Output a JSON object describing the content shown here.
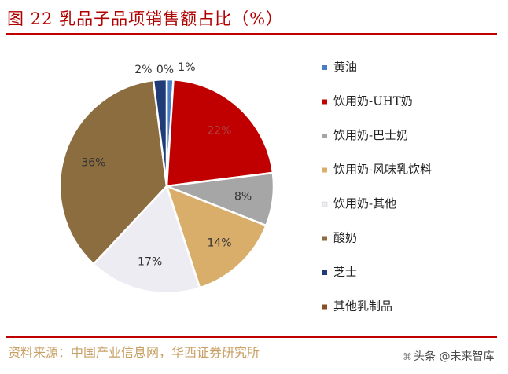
{
  "figure": {
    "title": "图 22   乳品子品项销售额占比（%）",
    "source": "资料来源：中国产业信息网，华西证券研究所",
    "watermark": "头条 @未来智库"
  },
  "chart_data": {
    "type": "pie",
    "start_angle_deg": 0,
    "direction": "clockwise",
    "legend_position": "right",
    "slices": [
      {
        "name": "黄油",
        "value": 1,
        "label": "1%",
        "color": "#4a7ec4"
      },
      {
        "name": "饮用奶-UHT奶",
        "value": 22,
        "label": "22%",
        "color": "#c00000"
      },
      {
        "name": "饮用奶-巴士奶",
        "value": 8,
        "label": "8%",
        "color": "#a6a6a6"
      },
      {
        "name": "饮用奶-风味乳饮料",
        "value": 14,
        "label": "14%",
        "color": "#d9ad6a"
      },
      {
        "name": "饮用奶-其他",
        "value": 17,
        "label": "17%",
        "color": "#ececf2"
      },
      {
        "name": "酸奶",
        "value": 36,
        "label": "36%",
        "color": "#8c6d3f"
      },
      {
        "name": "芝士",
        "value": 2,
        "label": "2%",
        "color": "#1f3c78"
      },
      {
        "name": "其他乳制品",
        "value": 0,
        "label": "0%",
        "color": "#8a4e24"
      }
    ]
  }
}
